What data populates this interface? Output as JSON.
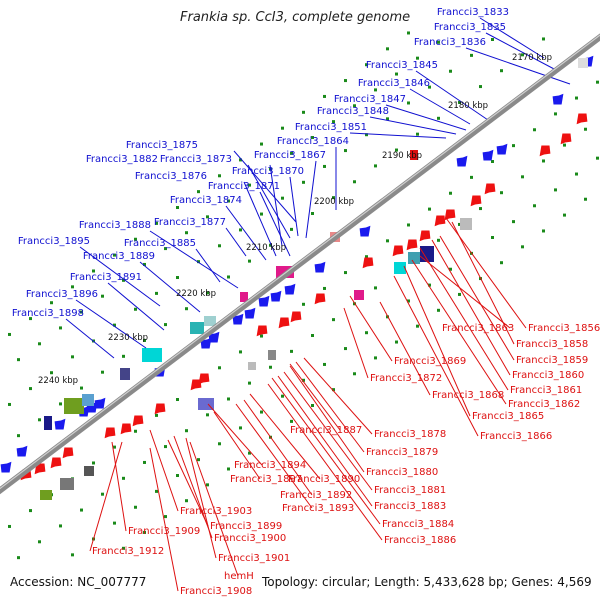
{
  "title": "Frankia sp. CcI3, complete genome",
  "footer": {
    "accession": "Accession: NC_007777",
    "summary": "Topology: circular; Length: 5,433,628 bp; Genes: 4,569"
  },
  "colors": {
    "forward_label": "#1010d0",
    "reverse_label": "#dd1111",
    "axis": "#8a8a8a",
    "tick": "#1a8a1a"
  },
  "scale": [
    "2170 kbp",
    "2180 kbp",
    "2190 kbp",
    "2200 kbp",
    "2210 kbp",
    "2220 kbp",
    "2230 kbp",
    "2240 kbp"
  ],
  "forward_labels": [
    "Francci3_1833",
    "Francci3_1835",
    "Francci3_1836",
    "Francci3_1845",
    "Francci3_1846",
    "Francci3_1847",
    "Francci3_1848",
    "Francci3_1851",
    "Francci3_1864",
    "Francci3_1867",
    "Francci3_1875",
    "Francci3_1882",
    "Francci3_1873",
    "Francci3_1870",
    "Francci3_1876",
    "Francci3_1871",
    "Francci3_1874",
    "Francci3_1877",
    "Francci3_1888",
    "Francci3_1885",
    "Francci3_1895",
    "Francci3_1889",
    "Francci3_1891",
    "Francci3_1896",
    "Francci3_1898"
  ],
  "reverse_labels": [
    "Francci3_1863",
    "Francci3_1856",
    "Francci3_1858",
    "Francci3_1859",
    "Francci3_1860",
    "Francci3_1861",
    "Francci3_1862",
    "Francci3_1865",
    "Francci3_1866",
    "Francci3_1869",
    "Francci3_1872",
    "Francci3_1868",
    "Francci3_1887",
    "Francci3_1878",
    "Francci3_1879",
    "Francci3_1880",
    "Francci3_1881",
    "Francci3_1883",
    "Francci3_1884",
    "Francci3_1886",
    "Francci3_1890",
    "Francci3_1892",
    "Francci3_1893",
    "Francci3_1894",
    "Francci3_1897",
    "Francci3_1903",
    "Francci3_1899",
    "Francci3_1900",
    "Francci3_1901",
    "Francci3_1909",
    "Francci3_1912",
    "hemH",
    "Francci3_1908"
  ]
}
